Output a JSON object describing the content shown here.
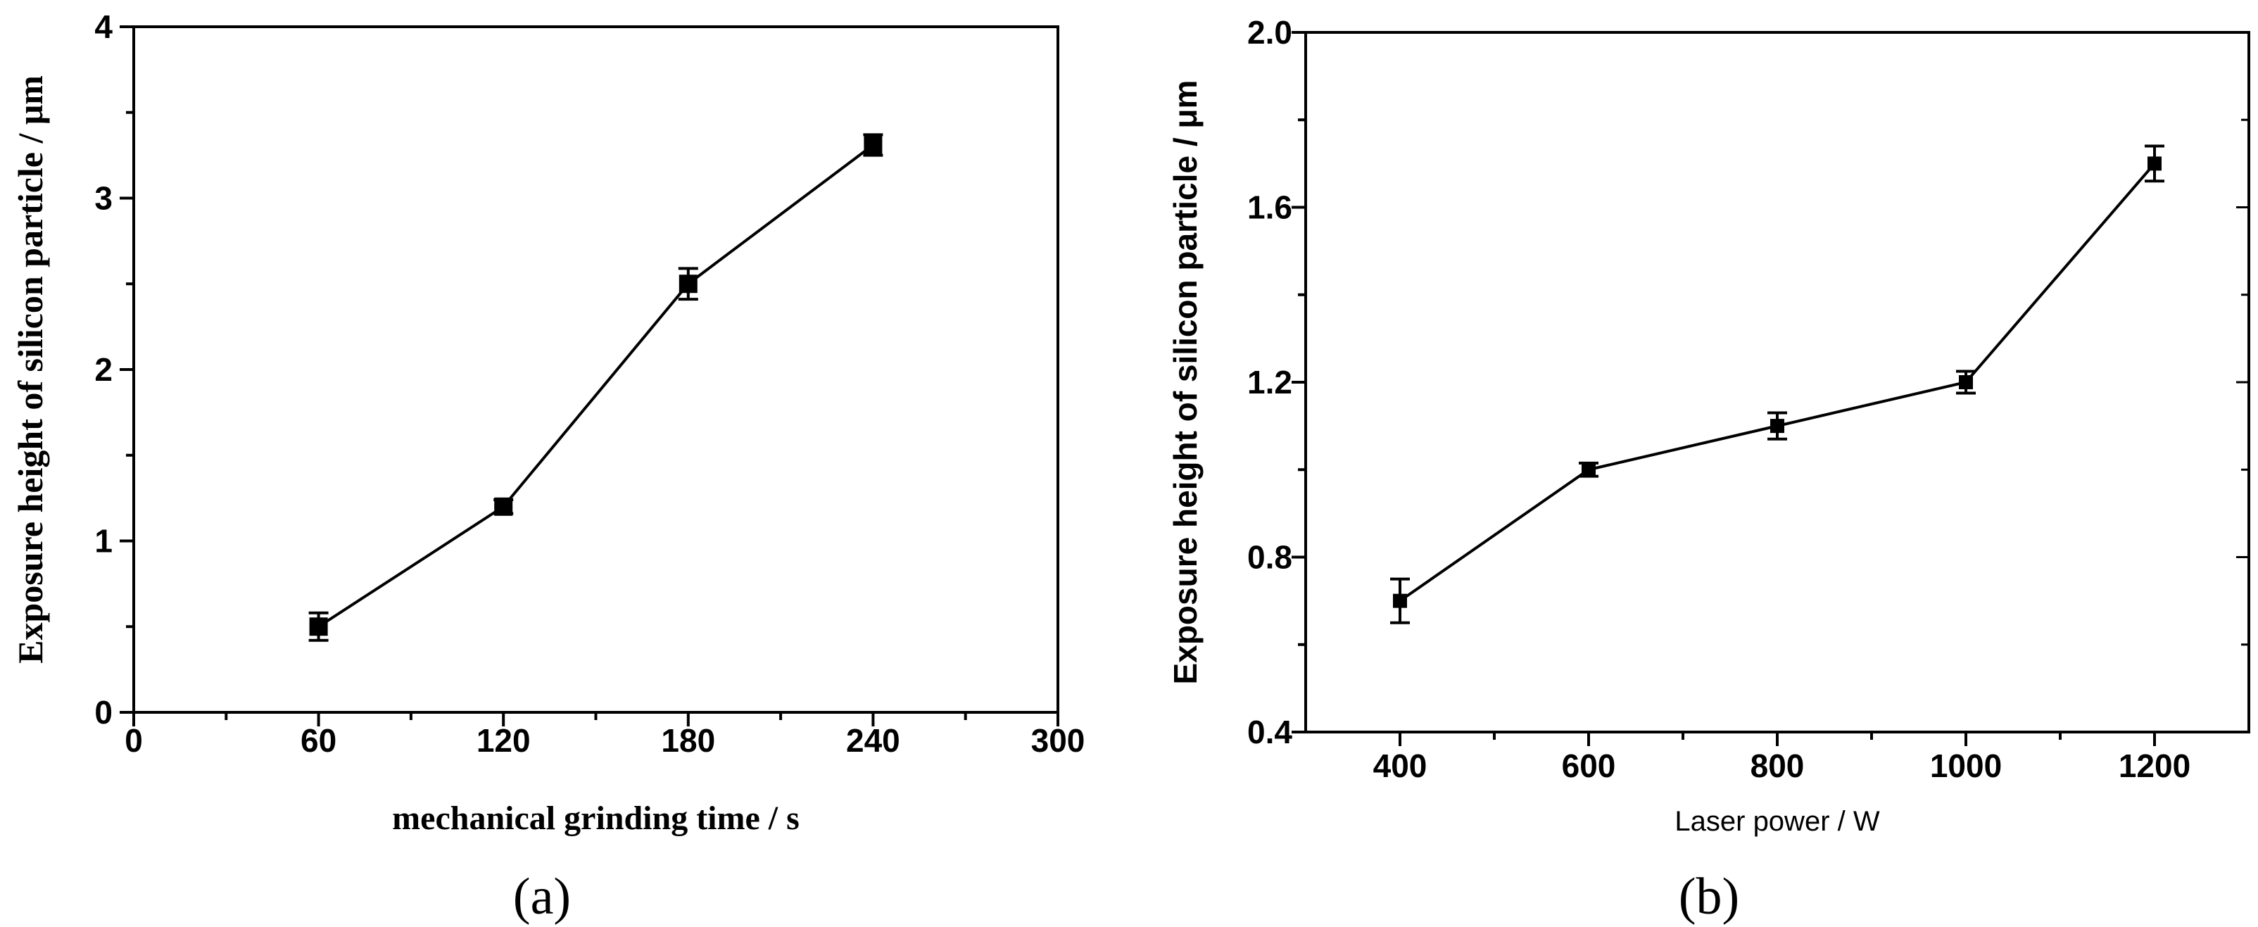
{
  "chart_data": [
    {
      "type": "line",
      "panel_label": "(a)",
      "xlabel": "mechanical grinding time / s",
      "ylabel": "Exposure height of silicon particle / μm",
      "xlim": [
        0,
        300
      ],
      "ylim": [
        0,
        4
      ],
      "xticks": [
        0,
        60,
        120,
        180,
        240,
        300
      ],
      "xtick_labels": [
        "0",
        "60",
        "120",
        "180",
        "240",
        "300"
      ],
      "yticks": [
        0,
        1,
        2,
        3,
        4
      ],
      "ytick_labels": [
        "0",
        "1",
        "2",
        "3",
        "4"
      ],
      "x": [
        60,
        120,
        180,
        240
      ],
      "values": [
        0.5,
        1.2,
        2.5,
        3.31
      ],
      "errors": [
        0.08,
        0.04,
        0.09,
        0.06
      ],
      "marker": "square",
      "grid": false
    },
    {
      "type": "line",
      "panel_label": "(b)",
      "xlabel": "Laser power / W",
      "ylabel": "Exposure height of silicon particle / μm",
      "xlim": [
        300,
        1300
      ],
      "ylim": [
        0.4,
        2.0
      ],
      "xticks": [
        400,
        600,
        800,
        1000,
        1200
      ],
      "xtick_labels": [
        "400",
        "600",
        "800",
        "1000",
        "1200"
      ],
      "yticks": [
        0.4,
        0.8,
        1.2,
        1.6,
        2.0
      ],
      "ytick_labels": [
        "0.4",
        "0.8",
        "1.2",
        "1.6",
        "2.0"
      ],
      "x": [
        400,
        600,
        800,
        1000,
        1200
      ],
      "values": [
        0.7,
        1.0,
        1.1,
        1.2,
        1.7
      ],
      "errors": [
        0.05,
        0.015,
        0.03,
        0.025,
        0.04
      ],
      "marker": "square",
      "grid": false
    }
  ]
}
